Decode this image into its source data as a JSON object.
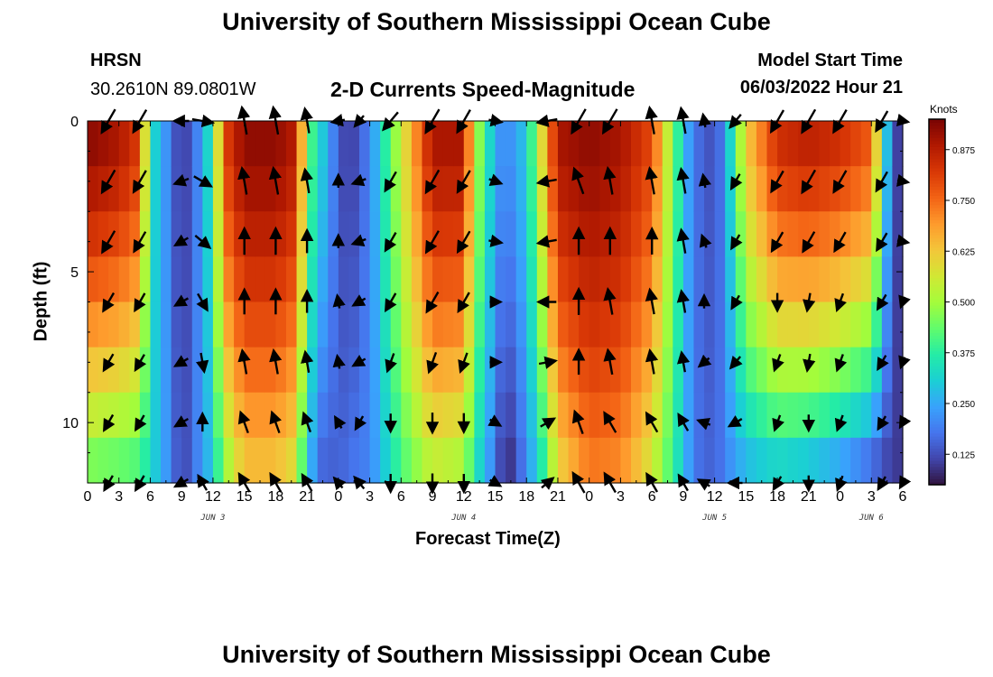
{
  "header": {
    "title_top": "University of Southern Mississippi Ocean Cube",
    "station_name": "HRSN",
    "station_coords": "30.2610N  89.0801W",
    "chart_title": "2-D Currents Speed-Magnitude",
    "model_label": "Model Start Time",
    "model_start": "06/03/2022 Hour 21",
    "title_bottom": "University of Southern Mississippi Ocean Cube"
  },
  "colorbar": {
    "unit": "Knots",
    "ticks": [
      "0.125",
      "0.250",
      "0.375",
      "0.500",
      "0.625",
      "0.750",
      "0.875"
    ],
    "tick_values": [
      0.125,
      0.25,
      0.375,
      0.5,
      0.625,
      0.75,
      0.875
    ],
    "range": [
      0.05,
      0.95
    ],
    "palette": [
      "#30123b",
      "#4145ab",
      "#4675ed",
      "#39a2fc",
      "#1bcfd4",
      "#24eca6",
      "#61fc6c",
      "#a4fc3b",
      "#d1e834",
      "#f3c63a",
      "#fe9b2d",
      "#f36315",
      "#d93806",
      "#b11901",
      "#7a0403"
    ]
  },
  "chart_data": {
    "type": "heatmap",
    "title": "2-D Currents Speed-Magnitude",
    "xlabel": "Forecast Time(Z)",
    "ylabel": "Depth (ft)",
    "x_tick_labels": [
      "0",
      "3",
      "6",
      "9",
      "12",
      "15",
      "18",
      "21",
      "0",
      "3",
      "6",
      "9",
      "12",
      "15",
      "18",
      "21",
      "0",
      "3",
      "6",
      "9",
      "12",
      "15",
      "18",
      "21",
      "0",
      "3",
      "6"
    ],
    "x_range_hours": [
      0,
      78
    ],
    "day_labels": [
      {
        "label": "JUN 3",
        "hour": 12
      },
      {
        "label": "JUN 4",
        "hour": 36
      },
      {
        "label": "JUN 5",
        "hour": 60
      },
      {
        "label": "JUN 6",
        "hour": 75
      }
    ],
    "y_tick_labels": [
      "0",
      "5",
      "10"
    ],
    "y_tick_values": [
      0,
      5,
      10
    ],
    "ylim": [
      0,
      12
    ],
    "y_inverted": true,
    "speed_profile": {
      "hours": [
        0,
        3,
        5,
        6,
        8,
        9,
        10.5,
        12,
        13,
        15,
        18,
        20,
        21,
        22.5,
        24,
        25,
        27,
        30,
        33,
        36,
        37,
        39,
        40,
        42,
        43.5,
        45,
        48,
        51,
        54,
        57,
        58,
        60,
        61,
        63,
        66,
        69,
        72,
        75,
        77,
        78
      ],
      "surface_knots": [
        0.94,
        0.9,
        0.82,
        0.35,
        0.18,
        0.08,
        0.2,
        0.38,
        0.8,
        0.93,
        0.93,
        0.88,
        0.45,
        0.3,
        0.15,
        0.09,
        0.2,
        0.55,
        0.9,
        0.9,
        0.55,
        0.25,
        0.2,
        0.3,
        0.6,
        0.9,
        0.93,
        0.9,
        0.8,
        0.3,
        0.18,
        0.12,
        0.22,
        0.62,
        0.85,
        0.88,
        0.85,
        0.78,
        0.12,
        0.1
      ],
      "bottom_knots": [
        0.42,
        0.4,
        0.38,
        0.33,
        0.2,
        0.1,
        0.2,
        0.3,
        0.45,
        0.62,
        0.62,
        0.55,
        0.28,
        0.15,
        0.15,
        0.18,
        0.2,
        0.4,
        0.52,
        0.48,
        0.35,
        0.18,
        0.05,
        0.2,
        0.35,
        0.58,
        0.72,
        0.7,
        0.55,
        0.3,
        0.18,
        0.15,
        0.2,
        0.25,
        0.28,
        0.25,
        0.2,
        0.12,
        0.1,
        0.1
      ]
    },
    "arrow_hours": [
      2,
      5,
      9,
      11,
      15,
      18,
      21,
      24,
      26,
      29,
      33,
      36,
      39,
      44,
      47,
      50,
      54,
      57,
      59,
      62,
      66,
      69,
      72,
      76,
      78
    ],
    "arrow_depths_ft": [
      0,
      2,
      4,
      6,
      8,
      10,
      12
    ],
    "arrow_dirs_deg": [
      [
        210,
        210,
        270,
        100,
        350,
        350,
        350,
        260,
        220,
        220,
        210,
        210,
        100,
        260,
        210,
        210,
        350,
        350,
        350,
        220,
        210,
        210,
        210,
        210,
        100
      ],
      [
        210,
        210,
        250,
        120,
        350,
        350,
        350,
        360,
        250,
        210,
        210,
        210,
        110,
        260,
        340,
        350,
        350,
        350,
        350,
        210,
        210,
        210,
        210,
        210,
        100
      ],
      [
        210,
        210,
        240,
        130,
        360,
        360,
        360,
        360,
        250,
        210,
        210,
        210,
        100,
        260,
        360,
        360,
        360,
        350,
        340,
        210,
        210,
        210,
        210,
        210,
        100
      ],
      [
        210,
        210,
        240,
        150,
        360,
        360,
        360,
        350,
        240,
        210,
        210,
        210,
        90,
        270,
        360,
        350,
        350,
        350,
        360,
        210,
        180,
        190,
        200,
        210,
        200
      ],
      [
        210,
        210,
        240,
        170,
        350,
        350,
        350,
        350,
        240,
        200,
        200,
        200,
        90,
        80,
        360,
        350,
        350,
        350,
        230,
        220,
        200,
        190,
        200,
        210,
        200
      ],
      [
        210,
        210,
        240,
        360,
        340,
        340,
        340,
        330,
        210,
        180,
        180,
        180,
        120,
        60,
        340,
        330,
        330,
        330,
        290,
        240,
        200,
        180,
        200,
        210,
        210
      ],
      [
        210,
        210,
        240,
        330,
        330,
        330,
        330,
        320,
        320,
        180,
        180,
        180,
        120,
        50,
        330,
        330,
        330,
        330,
        300,
        270,
        210,
        180,
        200,
        210,
        210
      ]
    ],
    "arrow_mag_knots": [
      [
        0.9,
        0.85,
        0.3,
        0.6,
        0.93,
        0.93,
        0.8,
        0.2,
        0.25,
        0.7,
        0.9,
        0.85,
        0.2,
        0.55,
        0.93,
        0.93,
        0.9,
        0.85,
        0.2,
        0.4,
        0.8,
        0.88,
        0.85,
        0.7,
        0.1
      ],
      [
        0.85,
        0.8,
        0.3,
        0.55,
        0.9,
        0.9,
        0.75,
        0.2,
        0.25,
        0.65,
        0.85,
        0.8,
        0.2,
        0.5,
        0.9,
        0.9,
        0.88,
        0.8,
        0.2,
        0.4,
        0.75,
        0.85,
        0.8,
        0.65,
        0.1
      ],
      [
        0.8,
        0.7,
        0.3,
        0.5,
        0.88,
        0.88,
        0.7,
        0.2,
        0.25,
        0.6,
        0.8,
        0.75,
        0.2,
        0.5,
        0.88,
        0.88,
        0.85,
        0.75,
        0.2,
        0.35,
        0.65,
        0.7,
        0.65,
        0.55,
        0.1
      ],
      [
        0.6,
        0.55,
        0.3,
        0.5,
        0.8,
        0.8,
        0.65,
        0.2,
        0.25,
        0.55,
        0.7,
        0.65,
        0.1,
        0.45,
        0.85,
        0.85,
        0.8,
        0.65,
        0.2,
        0.3,
        0.45,
        0.45,
        0.45,
        0.4,
        0.1
      ],
      [
        0.5,
        0.45,
        0.3,
        0.5,
        0.75,
        0.75,
        0.6,
        0.2,
        0.25,
        0.5,
        0.6,
        0.55,
        0.1,
        0.4,
        0.8,
        0.8,
        0.75,
        0.55,
        0.2,
        0.3,
        0.4,
        0.4,
        0.4,
        0.35,
        0.1
      ],
      [
        0.45,
        0.4,
        0.3,
        0.45,
        0.65,
        0.65,
        0.55,
        0.2,
        0.3,
        0.45,
        0.55,
        0.5,
        0.15,
        0.35,
        0.75,
        0.7,
        0.65,
        0.5,
        0.2,
        0.28,
        0.35,
        0.35,
        0.35,
        0.3,
        0.1
      ],
      [
        0.4,
        0.4,
        0.3,
        0.4,
        0.6,
        0.6,
        0.5,
        0.2,
        0.3,
        0.45,
        0.5,
        0.45,
        0.15,
        0.3,
        0.7,
        0.65,
        0.6,
        0.45,
        0.2,
        0.25,
        0.3,
        0.3,
        0.3,
        0.28,
        0.1
      ]
    ]
  }
}
